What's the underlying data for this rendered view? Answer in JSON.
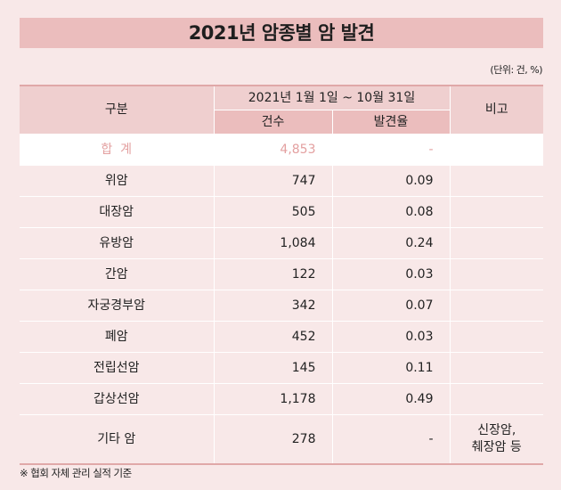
{
  "title": "2021년 암종별 암 발견",
  "unit": "(단위: 건, %)",
  "header": {
    "category": "구분",
    "period": "2021년 1월 1일 ~ 10월 31일",
    "count": "건수",
    "rate": "발견율",
    "note": "비고"
  },
  "total": {
    "label": "합  계",
    "count": "4,853",
    "rate": "-",
    "note": ""
  },
  "rows": [
    {
      "label": "위암",
      "count": "747",
      "rate": "0.09",
      "note": ""
    },
    {
      "label": "대장암",
      "count": "505",
      "rate": "0.08",
      "note": ""
    },
    {
      "label": "유방암",
      "count": "1,084",
      "rate": "0.24",
      "note": ""
    },
    {
      "label": "간암",
      "count": "122",
      "rate": "0.03",
      "note": ""
    },
    {
      "label": "자궁경부암",
      "count": "342",
      "rate": "0.07",
      "note": ""
    },
    {
      "label": "폐암",
      "count": "452",
      "rate": "0.03",
      "note": ""
    },
    {
      "label": "전립선암",
      "count": "145",
      "rate": "0.11",
      "note": ""
    },
    {
      "label": "갑상선암",
      "count": "1,178",
      "rate": "0.49",
      "note": ""
    },
    {
      "label": "기타 암",
      "count": "278",
      "rate": "-",
      "note_line1": "신장암,",
      "note_line2": "췌장암 등"
    }
  ],
  "footnote": "※ 협회 자체 관리 실적 기준"
}
